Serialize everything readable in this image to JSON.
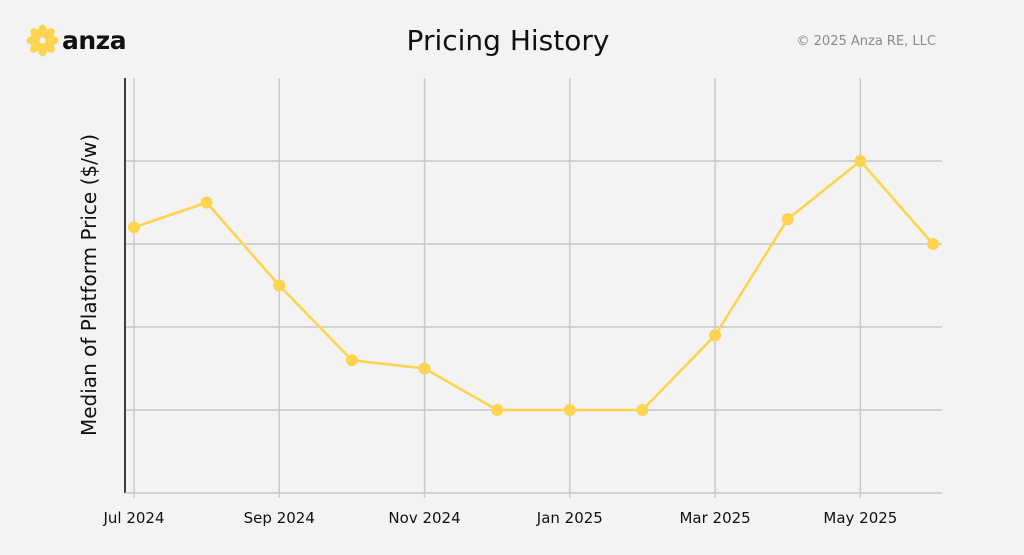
{
  "header": {
    "logo_text": "anza",
    "title": "Pricing History",
    "copyright": "© 2025 Anza RE, LLC"
  },
  "colors": {
    "series": "#fdd44f",
    "grid": "#c8c8c8",
    "axis": "#111111",
    "background": "#f3f3f3"
  },
  "chart_data": {
    "type": "line",
    "title": "Pricing History",
    "xlabel": "",
    "ylabel": "Median of Platform Price ($/w)",
    "grid": true,
    "y_tick_labels_visible": false,
    "xlim": [
      "2024-07",
      "2025-06"
    ],
    "x_ticks": [
      {
        "x": "2024-07",
        "label": "Jul 2024"
      },
      {
        "x": "2024-09",
        "label": "Sep 2024"
      },
      {
        "x": "2024-11",
        "label": "Nov 2024"
      },
      {
        "x": "2025-01",
        "label": "Jan 2025"
      },
      {
        "x": "2025-03",
        "label": "Mar 2025"
      },
      {
        "x": "2025-05",
        "label": "May 2025"
      }
    ],
    "ylim": [
      0,
      5
    ],
    "y_gridlines": [
      1,
      2,
      3,
      4
    ],
    "series": [
      {
        "x": [
          "2024-07",
          "2024-08",
          "2024-09",
          "2024-10",
          "2024-11",
          "2024-12",
          "2025-01",
          "2025-02",
          "2025-03",
          "2025-04",
          "2025-05",
          "2025-06"
        ],
        "values": [
          3.2,
          3.5,
          2.5,
          1.6,
          1.5,
          1.0,
          1.0,
          1.0,
          1.9,
          3.3,
          4.0,
          3.0
        ]
      }
    ]
  }
}
